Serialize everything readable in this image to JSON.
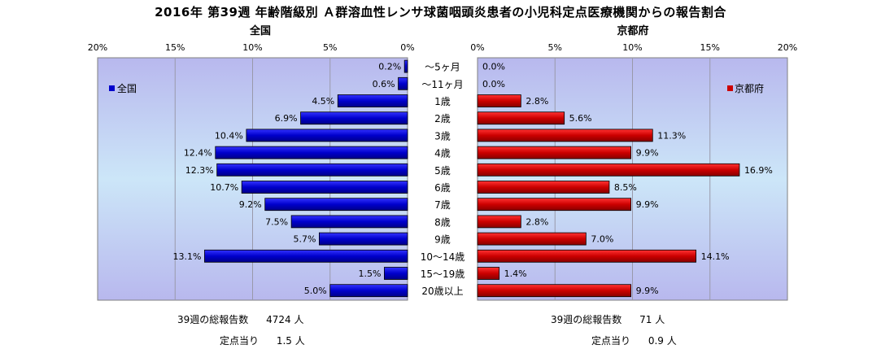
{
  "title": "2016年 第39週 年齢階級別 Ａ群溶血性レンサ球菌咽頭炎患者の小児科定点医療機関からの報告割合",
  "colors": {
    "zenkoku": "#0000CC",
    "kyoto": "#CC0000"
  },
  "chart_data": {
    "type": "bar",
    "orientation": "horizontal-butterfly",
    "categories": [
      "～5ヶ月",
      "～11ヶ月",
      "1歳",
      "2歳",
      "3歳",
      "4歳",
      "5歳",
      "6歳",
      "7歳",
      "8歳",
      "9歳",
      "10～14歳",
      "15～19歳",
      "20歳以上"
    ],
    "x_ticks": [
      "20%",
      "15%",
      "10%",
      "5%",
      "0%"
    ],
    "x_ticks_right": [
      "0%",
      "5%",
      "10%",
      "15%",
      "20%"
    ],
    "xlim": [
      0,
      20
    ],
    "series": [
      {
        "name": "全国",
        "panel_title": "全国",
        "values": [
          0.2,
          0.6,
          4.5,
          6.9,
          10.4,
          12.4,
          12.3,
          10.7,
          9.2,
          7.5,
          5.7,
          13.1,
          1.5,
          5.0
        ],
        "labels": [
          "0.2%",
          "0.6%",
          "4.5%",
          "6.9%",
          "10.4%",
          "12.4%",
          "12.3%",
          "10.7%",
          "9.2%",
          "7.5%",
          "5.7%",
          "13.1%",
          "1.5%",
          "5.0%"
        ]
      },
      {
        "name": "京都府",
        "panel_title": "京都府",
        "values": [
          0.0,
          0.0,
          2.8,
          5.6,
          11.3,
          9.9,
          16.9,
          8.5,
          9.9,
          2.8,
          7.0,
          14.1,
          1.4,
          9.9
        ],
        "labels": [
          "0.0%",
          "0.0%",
          "2.8%",
          "5.6%",
          "11.3%",
          "9.9%",
          "16.9%",
          "8.5%",
          "9.9%",
          "2.8%",
          "7.0%",
          "14.1%",
          "1.4%",
          "9.9%"
        ]
      }
    ]
  },
  "footer": {
    "left": {
      "total_label": "39週の総報告数",
      "total_value": "4724 人",
      "per_label": "定点当り",
      "per_value": "1.5 人"
    },
    "right": {
      "total_label": "39週の総報告数",
      "total_value": "71 人",
      "per_label": "定点当り",
      "per_value": "0.9 人"
    }
  }
}
